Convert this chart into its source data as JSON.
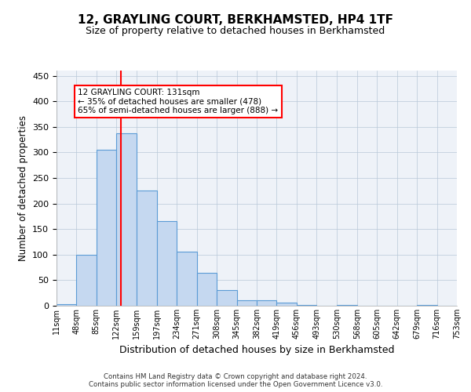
{
  "title": "12, GRAYLING COURT, BERKHAMSTED, HP4 1TF",
  "subtitle": "Size of property relative to detached houses in Berkhamsted",
  "xlabel": "Distribution of detached houses by size in Berkhamsted",
  "ylabel": "Number of detached properties",
  "bar_color": "#c5d8f0",
  "bar_edgecolor": "#5b9bd5",
  "grid_color": "#b8c8d8",
  "vline_x": 131,
  "vline_color": "red",
  "annotation_line1": "12 GRAYLING COURT: 131sqm",
  "annotation_line2": "← 35% of detached houses are smaller (478)",
  "annotation_line3": "65% of semi-detached houses are larger (888) →",
  "annotation_box_edgecolor": "red",
  "bin_edges": [
    11,
    48,
    85,
    122,
    159,
    197,
    234,
    271,
    308,
    345,
    382,
    419,
    456,
    493,
    530,
    568,
    605,
    642,
    679,
    716,
    753
  ],
  "bar_heights": [
    3,
    99,
    305,
    338,
    225,
    165,
    106,
    65,
    30,
    10,
    10,
    6,
    2,
    0,
    1,
    0,
    0,
    0,
    1,
    0
  ],
  "ylim": [
    0,
    460
  ],
  "yticks": [
    0,
    50,
    100,
    150,
    200,
    250,
    300,
    350,
    400,
    450
  ],
  "footer": "Contains HM Land Registry data © Crown copyright and database right 2024.\nContains public sector information licensed under the Open Government Licence v3.0.",
  "background_color": "#eef2f8"
}
